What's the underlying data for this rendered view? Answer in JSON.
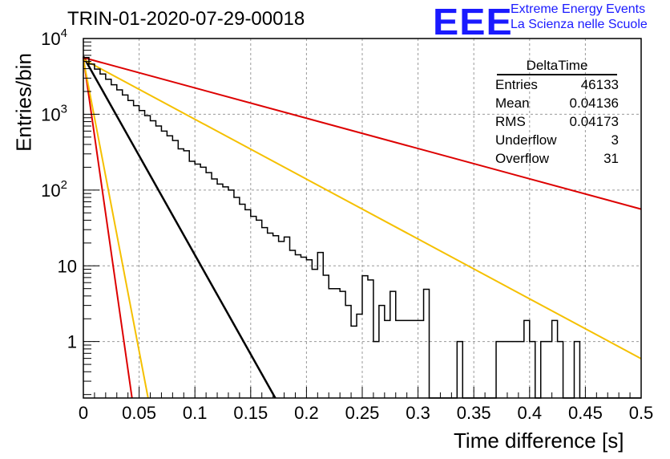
{
  "header": {
    "title": "TRIN-01-2020-07-29-00018",
    "logo_text": "EEE",
    "logo_line1": "Extreme Energy Events",
    "logo_line2": "La Scienza nelle Scuole",
    "logo_color": "#1a1aff"
  },
  "stats": {
    "title": "DeltaTime",
    "rows": [
      {
        "label": "Entries",
        "value": "46133"
      },
      {
        "label": "Mean",
        "value": "0.04136"
      },
      {
        "label": "RMS",
        "value": "0.04173"
      },
      {
        "label": "Underflow",
        "value": "3"
      },
      {
        "label": "Overflow",
        "value": "31"
      }
    ]
  },
  "chart_data": {
    "type": "line",
    "xlabel": "Time difference [s]",
    "ylabel": "Entries/bin",
    "xlim": [
      0,
      0.5
    ],
    "ylim": [
      0.18,
      10000
    ],
    "yscale": "log",
    "grid": true,
    "x_ticks": [
      "0",
      "0.05",
      "0.1",
      "0.15",
      "0.2",
      "0.25",
      "0.3",
      "0.35",
      "0.4",
      "0.45",
      "0.5"
    ],
    "y_tick_labels": [
      {
        "value": 1,
        "text": "1"
      },
      {
        "value": 10,
        "text": "10"
      },
      {
        "value": 100,
        "base": "10",
        "exp": "2"
      },
      {
        "value": 1000,
        "base": "10",
        "exp": "3"
      },
      {
        "value": 10000,
        "base": "10",
        "exp": "4"
      }
    ],
    "histogram": {
      "color": "#000000",
      "bin_width": 0.005,
      "x_start": 0,
      "values": [
        5600,
        4600,
        3950,
        3400,
        2900,
        2450,
        2100,
        1800,
        1520,
        1300,
        1120,
        960,
        820,
        700,
        600,
        520,
        450,
        350,
        330,
        240,
        220,
        200,
        170,
        140,
        120,
        110,
        100,
        80,
        65,
        55,
        45,
        40,
        32,
        27,
        25,
        21,
        24,
        16,
        14,
        13,
        12,
        9,
        15,
        7.5,
        5,
        5,
        4.6,
        3,
        1.6,
        2.3,
        7.4,
        6.5,
        1.0,
        3,
        1.9,
        4.6,
        1.9,
        1.9,
        1.9,
        1.9,
        1.9,
        4.9,
        0.15,
        0.15,
        0.15,
        0.15,
        0.15,
        1.0,
        0.15,
        0.15,
        0.15,
        0.15,
        0.15,
        0.15,
        1.0,
        1.0,
        1.0,
        1.0,
        1.0,
        1.9,
        1.0,
        0.15,
        1.0,
        1.0,
        1.9,
        1.0,
        0.15,
        0.15,
        1.0,
        0.15,
        0.15,
        0.15,
        0.15,
        0.15,
        0.15,
        0.15,
        0.15,
        0.15,
        0.15,
        0.15
      ]
    },
    "series": [
      {
        "color": "#000000",
        "y0": 5800,
        "slope_per_s": -26.2,
        "x_end": 0.425
      },
      {
        "color": "#dd0000",
        "y0": 5600,
        "slope_per_s": -4.0,
        "x_end": 0.5
      },
      {
        "color": "#f5c000",
        "y0": 5300,
        "slope_per_s": -7.9,
        "x_end": 0.5
      },
      {
        "color": "#dd0000",
        "y0": 5600,
        "slope_per_s": -103,
        "x_end": 0.106
      },
      {
        "color": "#f5c000",
        "y0": 5300,
        "slope_per_s": -77,
        "x_end": 0.132
      }
    ]
  }
}
